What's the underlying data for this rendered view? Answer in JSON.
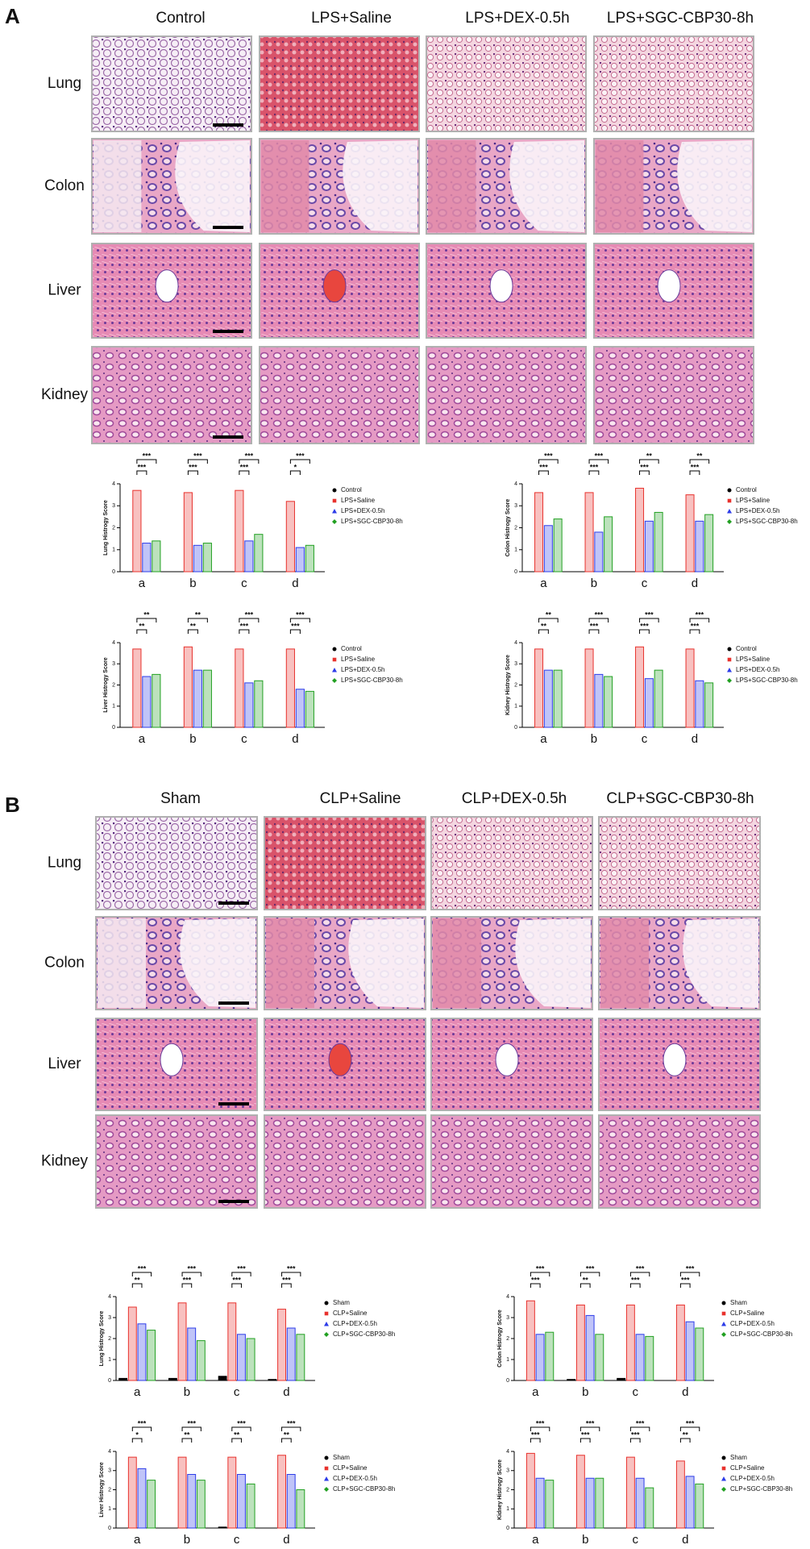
{
  "panels": [
    {
      "label": "A",
      "columns": [
        "Control",
        "LPS+Saline",
        "LPS+DEX-0.5h",
        "LPS+SGC-CBP30-8h"
      ],
      "rows": [
        "Lung",
        "Colon",
        "Liver",
        "Kidney"
      ]
    },
    {
      "label": "B",
      "columns": [
        "Sham",
        "CLP+Saline",
        "CLP+DEX-0.5h",
        "CLP+SGC-CBP30-8h"
      ],
      "rows": [
        "Lung",
        "Colon",
        "Liver",
        "Kidney"
      ]
    }
  ],
  "chart_data": [
    {
      "type": "bar",
      "y_label": "Lung Histrogy Score",
      "categories": [
        "a",
        "b",
        "c",
        "d"
      ],
      "ylim": [
        0,
        4
      ],
      "yticks": [
        0,
        1,
        2,
        3,
        4
      ],
      "series": [
        {
          "name": "Control",
          "color": "#000000",
          "values": [
            0,
            0,
            0,
            0
          ]
        },
        {
          "name": "LPS+Saline",
          "color": "#e8322d",
          "values": [
            3.7,
            3.6,
            3.7,
            3.2
          ]
        },
        {
          "name": "LPS+DEX-0.5h",
          "color": "#2d3ce8",
          "values": [
            1.3,
            1.2,
            1.4,
            1.1
          ]
        },
        {
          "name": "LPS+SGC-CBP30-8h",
          "color": "#22a022",
          "values": [
            1.4,
            1.3,
            1.7,
            1.2
          ]
        }
      ],
      "significance": [
        [
          "***",
          "***"
        ],
        [
          "***",
          "***"
        ],
        [
          "***",
          "***"
        ],
        [
          "***",
          "*"
        ]
      ]
    },
    {
      "type": "bar",
      "y_label": "Colon Histrogy Score",
      "categories": [
        "a",
        "b",
        "c",
        "d"
      ],
      "ylim": [
        0,
        4
      ],
      "yticks": [
        0,
        1,
        2,
        3,
        4
      ],
      "series": [
        {
          "name": "Control",
          "color": "#000000",
          "values": [
            0,
            0,
            0,
            0
          ]
        },
        {
          "name": "LPS+Saline",
          "color": "#e8322d",
          "values": [
            3.6,
            3.6,
            3.8,
            3.5
          ]
        },
        {
          "name": "LPS+DEX-0.5h",
          "color": "#2d3ce8",
          "values": [
            2.1,
            1.8,
            2.3,
            2.3
          ]
        },
        {
          "name": "LPS+SGC-CBP30-8h",
          "color": "#22a022",
          "values": [
            2.4,
            2.5,
            2.7,
            2.6
          ]
        }
      ],
      "significance": [
        [
          "***",
          "***"
        ],
        [
          "***",
          "***"
        ],
        [
          "**",
          "***"
        ],
        [
          "**",
          "***"
        ]
      ]
    },
    {
      "type": "bar",
      "y_label": "Liver Histrogy Score",
      "categories": [
        "a",
        "b",
        "c",
        "d"
      ],
      "ylim": [
        0,
        4
      ],
      "yticks": [
        0,
        1,
        2,
        3,
        4
      ],
      "series": [
        {
          "name": "Control",
          "color": "#000000",
          "values": [
            0,
            0,
            0,
            0
          ]
        },
        {
          "name": "LPS+Saline",
          "color": "#e8322d",
          "values": [
            3.7,
            3.8,
            3.7,
            3.7
          ]
        },
        {
          "name": "LPS+DEX-0.5h",
          "color": "#2d3ce8",
          "values": [
            2.4,
            2.7,
            2.1,
            1.8
          ]
        },
        {
          "name": "LPS+SGC-CBP30-8h",
          "color": "#22a022",
          "values": [
            2.5,
            2.7,
            2.2,
            1.7
          ]
        }
      ],
      "significance": [
        [
          "**",
          "**"
        ],
        [
          "**",
          "**"
        ],
        [
          "***",
          "***"
        ],
        [
          "***",
          "***"
        ]
      ]
    },
    {
      "type": "bar",
      "y_label": "Kidney Histrogy Score",
      "categories": [
        "a",
        "b",
        "c",
        "d"
      ],
      "ylim": [
        0,
        4
      ],
      "yticks": [
        0,
        1,
        2,
        3,
        4
      ],
      "series": [
        {
          "name": "Control",
          "color": "#000000",
          "values": [
            0,
            0,
            0,
            0
          ]
        },
        {
          "name": "LPS+Saline",
          "color": "#e8322d",
          "values": [
            3.7,
            3.7,
            3.8,
            3.7
          ]
        },
        {
          "name": "LPS+DEX-0.5h",
          "color": "#2d3ce8",
          "values": [
            2.7,
            2.5,
            2.3,
            2.2
          ]
        },
        {
          "name": "LPS+SGC-CBP30-8h",
          "color": "#22a022",
          "values": [
            2.7,
            2.4,
            2.7,
            2.1
          ]
        }
      ],
      "significance": [
        [
          "**",
          "**"
        ],
        [
          "***",
          "***"
        ],
        [
          "***",
          "***"
        ],
        [
          "***",
          "***"
        ]
      ]
    },
    {
      "type": "bar",
      "y_label": "Lung Histrogy Score",
      "categories": [
        "a",
        "b",
        "c",
        "d"
      ],
      "ylim": [
        0,
        4
      ],
      "yticks": [
        0,
        1,
        2,
        3,
        4
      ],
      "series": [
        {
          "name": "Sham",
          "color": "#000000",
          "values": [
            0.1,
            0.1,
            0.2,
            0.05
          ]
        },
        {
          "name": "CLP+Saline",
          "color": "#e8322d",
          "values": [
            3.5,
            3.7,
            3.7,
            3.4
          ]
        },
        {
          "name": "CLP+DEX-0.5h",
          "color": "#2d3ce8",
          "values": [
            2.7,
            2.5,
            2.2,
            2.5
          ]
        },
        {
          "name": "CLP+SGC-CBP30-8h",
          "color": "#22a022",
          "values": [
            2.4,
            1.9,
            2.0,
            2.2
          ]
        }
      ],
      "significance": [
        [
          "***",
          "**"
        ],
        [
          "***",
          "***"
        ],
        [
          "***",
          "***"
        ],
        [
          "***",
          "***"
        ]
      ]
    },
    {
      "type": "bar",
      "y_label": "Colon Histrogy Score",
      "categories": [
        "a",
        "b",
        "c",
        "d"
      ],
      "ylim": [
        0,
        4
      ],
      "yticks": [
        0,
        1,
        2,
        3,
        4
      ],
      "series": [
        {
          "name": "Sham",
          "color": "#000000",
          "values": [
            0,
            0.05,
            0.1,
            0
          ]
        },
        {
          "name": "CLP+Saline",
          "color": "#e8322d",
          "values": [
            3.8,
            3.6,
            3.6,
            3.6
          ]
        },
        {
          "name": "CLP+DEX-0.5h",
          "color": "#2d3ce8",
          "values": [
            2.2,
            3.1,
            2.2,
            2.8
          ]
        },
        {
          "name": "CLP+SGC-CBP30-8h",
          "color": "#22a022",
          "values": [
            2.3,
            2.2,
            2.1,
            2.5
          ]
        }
      ],
      "significance": [
        [
          "***",
          "***"
        ],
        [
          "***",
          "**"
        ],
        [
          "***",
          "***"
        ],
        [
          "***",
          "***"
        ]
      ]
    },
    {
      "type": "bar",
      "y_label": "Liver Histrogy Score",
      "categories": [
        "a",
        "b",
        "c",
        "d"
      ],
      "ylim": [
        0,
        4
      ],
      "yticks": [
        0,
        1,
        2,
        3,
        4
      ],
      "series": [
        {
          "name": "Sham",
          "color": "#000000",
          "values": [
            0,
            0,
            0.05,
            0
          ]
        },
        {
          "name": "CLP+Saline",
          "color": "#e8322d",
          "values": [
            3.7,
            3.7,
            3.7,
            3.8
          ]
        },
        {
          "name": "CLP+DEX-0.5h",
          "color": "#2d3ce8",
          "values": [
            3.1,
            2.8,
            2.8,
            2.8
          ]
        },
        {
          "name": "CLP+SGC-CBP30-8h",
          "color": "#22a022",
          "values": [
            2.5,
            2.5,
            2.3,
            2.0
          ]
        }
      ],
      "significance": [
        [
          "***",
          "*"
        ],
        [
          "***",
          "**"
        ],
        [
          "***",
          "**"
        ],
        [
          "***",
          "**"
        ]
      ]
    },
    {
      "type": "bar",
      "y_label": "Kidney Histrogy Score",
      "categories": [
        "a",
        "b",
        "c",
        "d"
      ],
      "ylim": [
        0,
        4
      ],
      "yticks": [
        0,
        1,
        2,
        3,
        4
      ],
      "series": [
        {
          "name": "Sham",
          "color": "#000000",
          "values": [
            0,
            0,
            0,
            0
          ]
        },
        {
          "name": "CLP+Saline",
          "color": "#e8322d",
          "values": [
            3.9,
            3.8,
            3.7,
            3.5
          ]
        },
        {
          "name": "CLP+DEX-0.5h",
          "color": "#2d3ce8",
          "values": [
            2.6,
            2.6,
            2.6,
            2.7
          ]
        },
        {
          "name": "CLP+SGC-CBP30-8h",
          "color": "#22a022",
          "values": [
            2.5,
            2.6,
            2.1,
            2.3
          ]
        }
      ],
      "significance": [
        [
          "***",
          "***"
        ],
        [
          "***",
          "***"
        ],
        [
          "***",
          "***"
        ],
        [
          "***",
          "**"
        ]
      ]
    }
  ]
}
